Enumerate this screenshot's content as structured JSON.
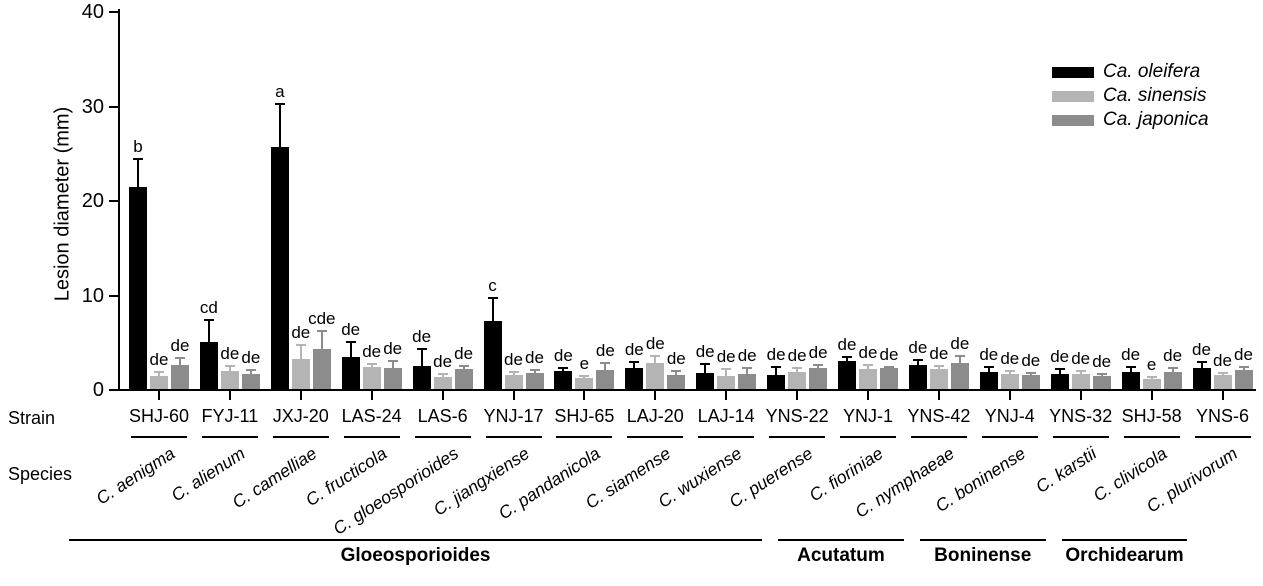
{
  "chart_data": {
    "type": "bar",
    "title": "",
    "xlabel": "",
    "ylabel": "Lesion diameter (mm)",
    "ylim": [
      0,
      40
    ],
    "yticks": [
      0,
      10,
      20,
      30,
      40
    ],
    "grid": false,
    "legend_position": "top-right",
    "row_labels": {
      "strain": "Strain",
      "species": "Species"
    },
    "categories": {
      "strains": [
        "SHJ-60",
        "FYJ-11",
        "JXJ-20",
        "LAS-24",
        "LAS-6",
        "YNJ-17",
        "SHJ-65",
        "LAJ-20",
        "LAJ-14",
        "YNS-22",
        "YNJ-1",
        "YNS-42",
        "YNJ-4",
        "YNS-32",
        "SHJ-58",
        "YNS-6"
      ],
      "species": [
        "C. aenigma",
        "C. alienum",
        "C. camelliae",
        "C. fructicola",
        "C. gloeosporioides",
        "C. jiangxiense",
        "C. pandanicola",
        "C. siamense",
        "C. wuxiense",
        "C. puerense",
        "C. fioriniae",
        "C. nymphaeae",
        "C. boninense",
        "C. karstii",
        "C. clivicola",
        "C. plurivorum"
      ]
    },
    "series": [
      {
        "name": "Ca. oleifera",
        "color": "#000000",
        "values": [
          21.4,
          5.0,
          25.6,
          3.4,
          2.4,
          7.2,
          1.9,
          2.2,
          1.7,
          1.5,
          3.0,
          2.5,
          1.8,
          1.6,
          1.8,
          2.2
        ],
        "errors": [
          3.0,
          2.4,
          4.7,
          1.7,
          1.9,
          2.5,
          0.4,
          0.8,
          1.1,
          0.9,
          0.5,
          0.7,
          0.6,
          0.6,
          0.6,
          0.8
        ],
        "letters": [
          "b",
          "cd",
          "a",
          "de",
          "de",
          "c",
          "de",
          "de",
          "de",
          "de",
          "de",
          "de",
          "de",
          "de",
          "de",
          "de"
        ]
      },
      {
        "name": "Ca. sinensis",
        "color": "#b4b4b4",
        "values": [
          1.4,
          1.9,
          3.2,
          2.3,
          1.3,
          1.5,
          1.2,
          2.7,
          1.4,
          1.8,
          2.1,
          2.1,
          1.6,
          1.6,
          1.1,
          1.5
        ],
        "errors": [
          0.5,
          0.6,
          1.6,
          0.5,
          0.4,
          0.4,
          0.3,
          0.9,
          0.8,
          0.5,
          0.5,
          0.4,
          0.4,
          0.4,
          0.3,
          0.3
        ],
        "letters": [
          "de",
          "de",
          "de",
          "de",
          "de",
          "de",
          "e",
          "de",
          "de",
          "de",
          "de",
          "de",
          "de",
          "de",
          "e",
          "de"
        ]
      },
      {
        "name": "Ca. japonica",
        "color": "#8c8c8c",
        "values": [
          2.5,
          1.6,
          4.2,
          2.2,
          2.1,
          1.7,
          2.0,
          1.5,
          1.6,
          2.2,
          2.2,
          2.7,
          1.5,
          1.4,
          1.8,
          2.0
        ],
        "errors": [
          0.9,
          0.5,
          2.0,
          0.9,
          0.4,
          0.4,
          0.9,
          0.5,
          0.7,
          0.4,
          0.2,
          0.9,
          0.3,
          0.3,
          0.5,
          0.4
        ],
        "letters": [
          "de",
          "de",
          "cde",
          "de",
          "de",
          "de",
          "de",
          "de",
          "de",
          "de",
          "de",
          "de",
          "de",
          "de",
          "de",
          "de"
        ]
      }
    ],
    "complexes": [
      {
        "label": "Gloeosporioides",
        "start": 0,
        "end": 9
      },
      {
        "label": "Acutatum",
        "start": 10,
        "end": 11
      },
      {
        "label": "Boninense",
        "start": 12,
        "end": 13
      },
      {
        "label": "Orchidearum",
        "start": 14,
        "end": 15
      }
    ]
  }
}
